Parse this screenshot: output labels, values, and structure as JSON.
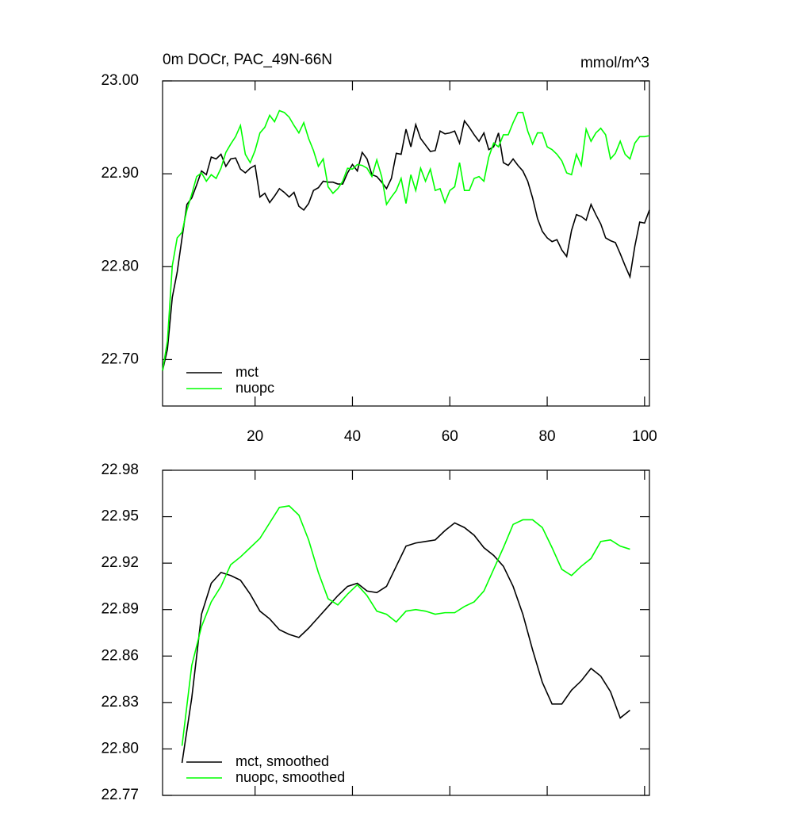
{
  "chart_data": [
    {
      "type": "line",
      "title": "0m DOCr, PAC_49N-66N",
      "units": "mmol/m^3",
      "x": [
        1,
        2,
        3,
        4,
        5,
        6,
        7,
        8,
        9,
        10,
        11,
        12,
        13,
        14,
        15,
        16,
        17,
        18,
        19,
        20,
        21,
        22,
        23,
        24,
        25,
        26,
        27,
        28,
        29,
        30,
        31,
        32,
        33,
        34,
        35,
        36,
        37,
        38,
        39,
        40,
        41,
        42,
        43,
        44,
        45,
        46,
        47,
        48,
        49,
        50,
        51,
        52,
        53,
        54,
        55,
        56,
        57,
        58,
        59,
        60,
        61,
        62,
        63,
        64,
        65,
        66,
        67,
        68,
        69,
        70,
        71,
        72,
        73,
        74,
        75,
        76,
        77,
        78,
        79,
        80,
        81,
        82,
        83,
        84,
        85,
        86,
        87,
        88,
        89,
        90,
        91,
        92,
        93,
        94,
        95,
        96,
        97,
        98,
        99,
        100,
        101
      ],
      "series": [
        {
          "name": "mct",
          "color": "#000000",
          "values": [
            22.688,
            22.711,
            22.767,
            22.794,
            22.831,
            22.867,
            22.874,
            22.888,
            22.903,
            22.899,
            22.918,
            22.916,
            22.921,
            22.908,
            22.916,
            22.917,
            22.905,
            22.901,
            22.906,
            22.909,
            22.875,
            22.879,
            22.869,
            22.876,
            22.884,
            22.88,
            22.875,
            22.88,
            22.865,
            22.861,
            22.868,
            22.882,
            22.885,
            22.892,
            22.891,
            22.891,
            22.889,
            22.889,
            22.901,
            22.91,
            22.903,
            22.923,
            22.916,
            22.899,
            22.897,
            22.891,
            22.884,
            22.895,
            22.922,
            22.921,
            22.948,
            22.929,
            22.953,
            22.938,
            22.931,
            22.924,
            22.925,
            22.946,
            22.943,
            22.944,
            22.946,
            22.933,
            22.957,
            22.95,
            22.942,
            22.935,
            22.944,
            22.926,
            22.929,
            22.944,
            22.912,
            22.909,
            22.916,
            22.909,
            22.903,
            22.892,
            22.874,
            22.852,
            22.838,
            22.831,
            22.827,
            22.829,
            22.818,
            22.811,
            22.839,
            22.856,
            22.854,
            22.85,
            22.867,
            22.856,
            22.846,
            22.831,
            22.828,
            22.826,
            22.814,
            22.801,
            22.789,
            22.822,
            22.848,
            22.847,
            22.861
          ]
        },
        {
          "name": "nuopc",
          "color": "#00ff00",
          "values": [
            22.688,
            22.72,
            22.801,
            22.831,
            22.837,
            22.861,
            22.878,
            22.897,
            22.901,
            22.892,
            22.899,
            22.895,
            22.906,
            22.923,
            22.932,
            22.94,
            22.952,
            22.921,
            22.912,
            22.925,
            22.944,
            22.95,
            22.963,
            22.956,
            22.968,
            22.966,
            22.961,
            22.952,
            22.944,
            22.955,
            22.938,
            22.925,
            22.908,
            22.916,
            22.886,
            22.879,
            22.884,
            22.892,
            22.906,
            22.905,
            22.91,
            22.909,
            22.906,
            22.897,
            22.915,
            22.897,
            22.867,
            22.875,
            22.882,
            22.895,
            22.868,
            22.899,
            22.882,
            22.906,
            22.892,
            22.905,
            22.882,
            22.884,
            22.869,
            22.882,
            22.886,
            22.912,
            22.882,
            22.882,
            22.895,
            22.897,
            22.892,
            22.918,
            22.933,
            22.929,
            22.942,
            22.942,
            22.955,
            22.966,
            22.966,
            22.946,
            22.932,
            22.944,
            22.944,
            22.929,
            22.926,
            22.921,
            22.914,
            22.901,
            22.899,
            22.921,
            22.909,
            22.948,
            22.935,
            22.944,
            22.949,
            22.942,
            22.916,
            22.922,
            22.935,
            22.921,
            22.916,
            22.933,
            22.94,
            22.94,
            22.941
          ]
        }
      ],
      "xlim": [
        1,
        101
      ],
      "xticks": [
        20,
        40,
        60,
        80,
        100
      ],
      "xtick_labels": true,
      "ylim": [
        22.65,
        23.0
      ],
      "yticks": [
        {
          "value": 22.7,
          "label": "22.70"
        },
        {
          "value": 22.8,
          "label": "22.80"
        },
        {
          "value": 22.9,
          "label": "22.90"
        },
        {
          "value": 23.0,
          "label": "23.00"
        }
      ],
      "legend": "lower-left"
    },
    {
      "type": "line",
      "x": [
        5,
        7,
        9,
        11,
        13,
        15,
        17,
        19,
        21,
        23,
        25,
        27,
        29,
        31,
        33,
        35,
        37,
        39,
        41,
        43,
        45,
        47,
        49,
        51,
        53,
        55,
        57,
        59,
        61,
        63,
        65,
        67,
        69,
        71,
        73,
        75,
        77,
        79,
        81,
        83,
        85,
        87,
        89,
        91,
        93,
        95,
        97
      ],
      "series": [
        {
          "name": "mct, smoothed",
          "color": "#000000",
          "values": [
            22.791,
            22.833,
            22.887,
            22.907,
            22.914,
            22.912,
            22.909,
            22.9,
            22.889,
            22.884,
            22.877,
            22.874,
            22.872,
            22.878,
            22.885,
            22.892,
            22.899,
            22.905,
            22.907,
            22.902,
            22.901,
            22.905,
            22.918,
            22.931,
            22.933,
            22.934,
            22.935,
            22.941,
            22.946,
            22.943,
            22.938,
            22.93,
            22.925,
            22.918,
            22.905,
            22.887,
            22.864,
            22.843,
            22.829,
            22.829,
            22.838,
            22.844,
            22.852,
            22.847,
            22.837,
            22.82,
            22.825
          ]
        },
        {
          "name": "nuopc, smoothed",
          "color": "#00ff00",
          "values": [
            22.802,
            22.854,
            22.879,
            22.895,
            22.905,
            22.919,
            22.924,
            22.93,
            22.936,
            22.946,
            22.956,
            22.957,
            22.951,
            22.935,
            22.914,
            22.897,
            22.893,
            22.9,
            22.906,
            22.899,
            22.889,
            22.887,
            22.882,
            22.889,
            22.89,
            22.889,
            22.887,
            22.888,
            22.888,
            22.892,
            22.895,
            22.902,
            22.916,
            22.93,
            22.945,
            22.948,
            22.948,
            22.943,
            22.93,
            22.916,
            22.912,
            22.918,
            22.923,
            22.934,
            22.935,
            22.931,
            22.929
          ]
        }
      ],
      "xlim": [
        1,
        101
      ],
      "xticks": [
        20,
        40,
        60,
        80,
        100
      ],
      "xtick_labels": false,
      "ylim": [
        22.77,
        22.98
      ],
      "yticks": [
        22.77,
        {
          "value": 22.8,
          "label": "22.80"
        },
        22.83,
        22.86,
        22.89,
        22.92,
        22.95,
        22.98
      ],
      "legend": "lower-left"
    }
  ]
}
